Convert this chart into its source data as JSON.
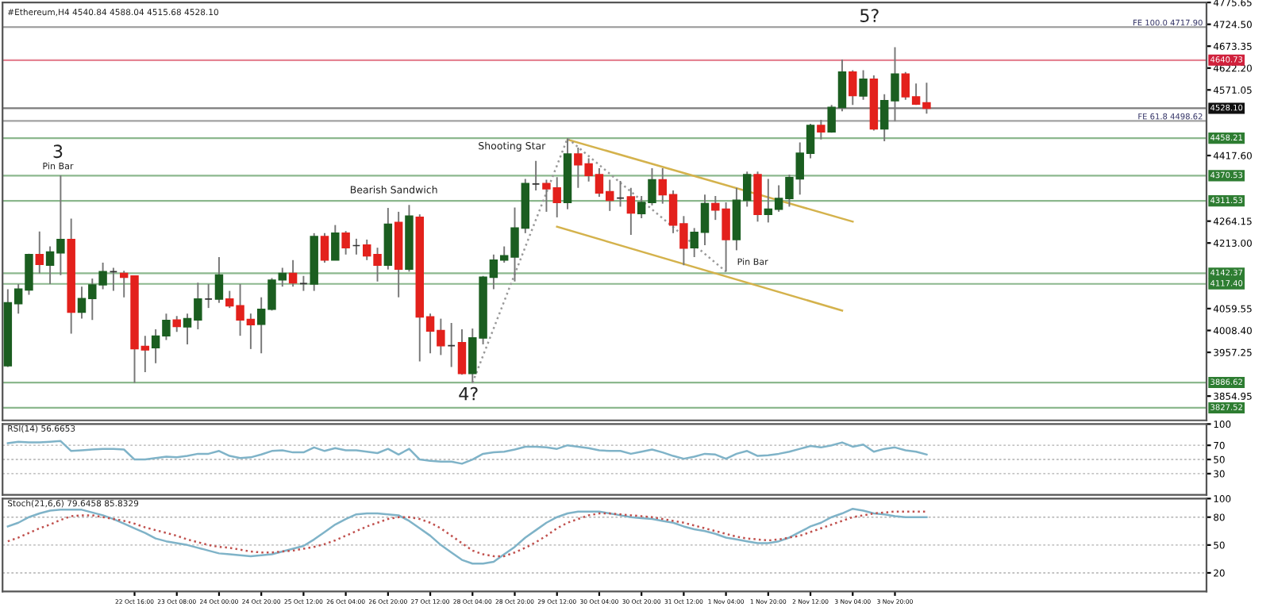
{
  "chart_data": [
    {
      "type": "candlestick",
      "title": "#Ethereum,H4 4540.84 4588.04 4515.68 4528.10",
      "categories": [
        null,
        null,
        null,
        null,
        null,
        null,
        null,
        null,
        null,
        null,
        null,
        null,
        null,
        null,
        null,
        null,
        null,
        null,
        null,
        null,
        null,
        null,
        null,
        null,
        null,
        null,
        null,
        null,
        null,
        null,
        null,
        null,
        null,
        null,
        null,
        null,
        null,
        null,
        null,
        null,
        null,
        null,
        null,
        null,
        null,
        null,
        null,
        null,
        null,
        null,
        null,
        null,
        null,
        null,
        null,
        null,
        null,
        null,
        null,
        null,
        null,
        null,
        null,
        null,
        null,
        null,
        null,
        null,
        null,
        null,
        null,
        null,
        null,
        null,
        null,
        null,
        null,
        null,
        null,
        null,
        null,
        null,
        null,
        null,
        null,
        null,
        null,
        null,
        null,
        null,
        null,
        null,
        null,
        null,
        null,
        null,
        null,
        null,
        null,
        null,
        null,
        null,
        null,
        null,
        null,
        null,
        null,
        null,
        null,
        null,
        null,
        null,
        null,
        null
      ],
      "ohlc": [
        [
          3926,
          4105,
          3923,
          4073
        ],
        [
          4071,
          4117,
          4048,
          4105
        ],
        [
          4103,
          4188,
          4092,
          4186
        ],
        [
          4186,
          4240,
          4142,
          4163
        ],
        [
          4161,
          4205,
          4117,
          4192
        ],
        [
          4190,
          4371,
          4138,
          4221
        ],
        [
          4221,
          4270,
          4001,
          4051
        ],
        [
          4051,
          4111,
          4036,
          4083
        ],
        [
          4083,
          4130,
          4033,
          4115
        ],
        [
          4115,
          4167,
          4105,
          4146
        ],
        [
          4146,
          4155,
          4101,
          4146
        ],
        [
          4142,
          4148,
          4086,
          4133
        ],
        [
          4136,
          4136,
          3886,
          3966
        ],
        [
          3971,
          3996,
          3911,
          3963
        ],
        [
          3968,
          4011,
          3932,
          3995
        ],
        [
          3996,
          4048,
          3986,
          4032
        ],
        [
          4033,
          4042,
          4005,
          4018
        ],
        [
          4017,
          4048,
          3976,
          4036
        ],
        [
          4033,
          4120,
          4011,
          4082
        ],
        [
          4082,
          4117,
          4061,
          4082
        ],
        [
          4082,
          4180,
          4073,
          4138
        ],
        [
          4082,
          4101,
          4061,
          4066
        ],
        [
          4066,
          4117,
          3996,
          4033
        ],
        [
          4034,
          4048,
          3965,
          4022
        ],
        [
          4023,
          4086,
          3955,
          4058
        ],
        [
          4058,
          4131,
          4055,
          4126
        ],
        [
          4127,
          4155,
          4111,
          4142
        ],
        [
          4142,
          4173,
          4111,
          4120
        ],
        [
          4118,
          4136,
          4101,
          4118
        ],
        [
          4117,
          4236,
          4101,
          4228
        ],
        [
          4228,
          4236,
          4167,
          4173
        ],
        [
          4173,
          4255,
          4173,
          4236
        ],
        [
          4236,
          4241,
          4186,
          4202
        ],
        [
          4207,
          4223,
          4186,
          4207
        ],
        [
          4208,
          4221,
          4173,
          4183
        ],
        [
          4186,
          4202,
          4123,
          4161
        ],
        [
          4161,
          4295,
          4151,
          4257
        ],
        [
          4261,
          4286,
          4086,
          4152
        ],
        [
          4152,
          4302,
          4146,
          4276
        ],
        [
          4273,
          4280,
          3936,
          4040
        ],
        [
          4040,
          4048,
          3955,
          4007
        ],
        [
          4008,
          4036,
          3951,
          3973
        ],
        [
          3973,
          4026,
          3923,
          3973
        ],
        [
          3980,
          4011,
          3905,
          3908
        ],
        [
          3908,
          4013,
          3886,
          3991
        ],
        [
          3991,
          4136,
          3976,
          4133
        ],
        [
          4133,
          4186,
          4105,
          4173
        ],
        [
          4173,
          4205,
          4167,
          4183
        ],
        [
          4180,
          4296,
          4123,
          4248
        ],
        [
          4248,
          4363,
          4236,
          4352
        ],
        [
          4351,
          4405,
          4336,
          4351
        ],
        [
          4352,
          4361,
          4286,
          4340
        ],
        [
          4342,
          4367,
          4273,
          4308
        ],
        [
          4308,
          4458,
          4292,
          4421
        ],
        [
          4421,
          4436,
          4342,
          4396
        ],
        [
          4398,
          4411,
          4357,
          4371
        ],
        [
          4373,
          4388,
          4321,
          4330
        ],
        [
          4333,
          4361,
          4288,
          4313
        ],
        [
          4318,
          4358,
          4298,
          4318
        ],
        [
          4321,
          4342,
          4232,
          4283
        ],
        [
          4282,
          4323,
          4271,
          4308
        ],
        [
          4308,
          4388,
          4301,
          4361
        ],
        [
          4361,
          4388,
          4305,
          4326
        ],
        [
          4326,
          4336,
          4236,
          4255
        ],
        [
          4258,
          4276,
          4161,
          4201
        ],
        [
          4202,
          4248,
          4180,
          4238
        ],
        [
          4238,
          4326,
          4208,
          4305
        ],
        [
          4305,
          4323,
          4267,
          4290
        ],
        [
          4292,
          4308,
          4146,
          4221
        ],
        [
          4221,
          4342,
          4196,
          4313
        ],
        [
          4313,
          4380,
          4298,
          4373
        ],
        [
          4373,
          4380,
          4263,
          4280
        ],
        [
          4280,
          4363,
          4261,
          4292
        ],
        [
          4292,
          4348,
          4286,
          4317
        ],
        [
          4317,
          4373,
          4298,
          4366
        ],
        [
          4363,
          4448,
          4326,
          4423
        ],
        [
          4423,
          4492,
          4411,
          4488
        ],
        [
          4488,
          4501,
          4455,
          4473
        ],
        [
          4473,
          4536,
          4471,
          4530
        ],
        [
          4530,
          4642,
          4521,
          4613
        ],
        [
          4613,
          4617,
          4536,
          4558
        ],
        [
          4557,
          4617,
          4548,
          4596
        ],
        [
          4596,
          4605,
          4476,
          4480
        ],
        [
          4480,
          4561,
          4451,
          4546
        ],
        [
          4546,
          4671,
          4498,
          4608
        ],
        [
          4608,
          4613,
          4548,
          4555
        ],
        [
          4555,
          4586,
          4536,
          4538
        ],
        [
          4540.84,
          4588.04,
          4515.68,
          4528.1
        ],
        null,
        null,
        null,
        null,
        null,
        null,
        null,
        null,
        null,
        null,
        null,
        null,
        null,
        null,
        null,
        null,
        null,
        null,
        null,
        null,
        null,
        null,
        null,
        null,
        null,
        null
      ],
      "colors": [
        "#1b5e20",
        "#1b5e20",
        "#1b5e20",
        "#e3211c",
        "#1b5e20",
        "#1b5e20",
        "#e3211c",
        "#1b5e20",
        "#1b5e20",
        "#1b5e20",
        "#333333",
        "#e3211c",
        "#e3211c",
        "#e3211c",
        "#1b5e20",
        "#1b5e20",
        "#e3211c",
        "#1b5e20",
        "#1b5e20",
        "#333333",
        "#1b5e20",
        "#e3211c",
        "#e3211c",
        "#e3211c",
        "#1b5e20",
        "#1b5e20",
        "#1b5e20",
        "#e3211c",
        "#333333",
        "#1b5e20",
        "#e3211c",
        "#1b5e20",
        "#e3211c",
        "#333333",
        "#e3211c",
        "#e3211c",
        "#1b5e20",
        "#e3211c",
        "#1b5e20",
        "#e3211c",
        "#e3211c",
        "#e3211c",
        "#333333",
        "#e3211c",
        "#1b5e20",
        "#1b5e20",
        "#1b5e20",
        "#1b5e20",
        "#1b5e20",
        "#1b5e20",
        "#333333",
        "#e3211c",
        "#e3211c",
        "#1b5e20",
        "#e3211c",
        "#e3211c",
        "#e3211c",
        "#e3211c",
        "#333333",
        "#e3211c",
        "#1b5e20",
        "#1b5e20",
        "#e3211c",
        "#e3211c",
        "#e3211c",
        "#1b5e20",
        "#1b5e20",
        "#e3211c",
        "#e3211c",
        "#1b5e20",
        "#1b5e20",
        "#e3211c",
        "#1b5e20",
        "#1b5e20",
        "#1b5e20",
        "#1b5e20",
        "#1b5e20",
        "#e3211c",
        "#1b5e20",
        "#1b5e20",
        "#e3211c",
        "#1b5e20",
        "#e3211c",
        "#1b5e20",
        "#1b5e20",
        "#e3211c",
        "#e3211c",
        "#e3211c",
        null,
        null,
        null,
        null,
        null,
        null,
        null,
        null,
        null,
        null,
        null,
        null,
        null,
        null,
        null,
        null,
        null,
        null,
        null,
        null,
        null,
        null,
        null,
        null,
        null,
        null
      ],
      "series": [
        {
          "type": "line",
          "color": "#d4b24c",
          "values": [
            null,
            null,
            null,
            null,
            null,
            null,
            null,
            null,
            null,
            null,
            null,
            null,
            null,
            null,
            null,
            null,
            null,
            null,
            null,
            null,
            null,
            null,
            null,
            null,
            null,
            null,
            null,
            null,
            null,
            null,
            null,
            null,
            null,
            null,
            null,
            null,
            null,
            null,
            null,
            null,
            null,
            null,
            null,
            null,
            null,
            null,
            null,
            null,
            null,
            null,
            null,
            null,
            null,
            4455,
            null,
            null,
            null,
            null,
            null,
            null,
            null,
            null,
            null,
            null,
            null,
            null,
            null,
            null,
            null,
            null,
            null,
            null,
            null,
            null,
            null,
            null,
            null,
            null,
            null,
            null,
            4263,
            null,
            null,
            null,
            null,
            null,
            null,
            null,
            null,
            null,
            null,
            null,
            null,
            null,
            null,
            null,
            null,
            null,
            null,
            null,
            null,
            null,
            null,
            null,
            null,
            null,
            null,
            null,
            null,
            null,
            null,
            null,
            null,
            null
          ]
        },
        {
          "type": "line",
          "color": "#d4b24c",
          "values": [
            null,
            null,
            null,
            null,
            null,
            null,
            null,
            null,
            null,
            null,
            null,
            null,
            null,
            null,
            null,
            null,
            null,
            null,
            null,
            null,
            null,
            null,
            null,
            null,
            null,
            null,
            null,
            null,
            null,
            null,
            null,
            null,
            null,
            null,
            null,
            null,
            null,
            null,
            null,
            null,
            null,
            null,
            null,
            null,
            null,
            null,
            null,
            null,
            null,
            null,
            null,
            null,
            4251,
            null,
            null,
            null,
            null,
            null,
            null,
            null,
            null,
            null,
            null,
            null,
            null,
            null,
            null,
            null,
            null,
            null,
            null,
            null,
            null,
            null,
            null,
            null,
            null,
            null,
            null,
            4055,
            null,
            null,
            null,
            null,
            null,
            null,
            null,
            null,
            null,
            null,
            null,
            null,
            null,
            null,
            null,
            null,
            null,
            null,
            null,
            null,
            null,
            null,
            null,
            null,
            null,
            null,
            null,
            null,
            null,
            null,
            null,
            null,
            null,
            null
          ]
        },
        {
          "type": "line",
          "color": "#9a9a9a",
          "line_style": "dotted",
          "values": [
            null,
            null,
            null,
            null,
            null,
            null,
            null,
            null,
            null,
            null,
            null,
            null,
            null,
            null,
            null,
            null,
            null,
            null,
            null,
            null,
            null,
            null,
            null,
            null,
            null,
            null,
            null,
            null,
            null,
            null,
            null,
            null,
            null,
            null,
            null,
            null,
            null,
            null,
            null,
            null,
            null,
            null,
            null,
            null,
            3886,
            null,
            null,
            null,
            null,
            null,
            null,
            null,
            null,
            4458,
            null,
            null,
            null,
            null,
            null,
            null,
            null,
            null,
            null,
            null,
            null,
            null,
            null,
            null,
            4146,
            null,
            null,
            null,
            null,
            null,
            null,
            null,
            null,
            null,
            null,
            null,
            null,
            null,
            null,
            null,
            null,
            null,
            null,
            null,
            null,
            null,
            null,
            null,
            null,
            null,
            null,
            null,
            null,
            null,
            null,
            null,
            null,
            null,
            null,
            null,
            null,
            null,
            null,
            null,
            null,
            null,
            null,
            null,
            null,
            null
          ]
        }
      ],
      "ylim": [
        3798.15,
        4775.65
      ],
      "yticks": [
        {
          "value": 3854.95,
          "label": "3854.95"
        },
        {
          "value": 3957.25,
          "label": "3957.25"
        },
        {
          "value": 4008.4,
          "label": "4008.40"
        },
        {
          "value": 4059.55,
          "label": "4059.55"
        },
        {
          "value": 4213,
          "label": "4213.00"
        },
        {
          "value": 4264.15,
          "label": "4264.15"
        },
        {
          "value": 4417.6,
          "label": "4417.60"
        },
        {
          "value": 4571.05,
          "label": "4571.05"
        },
        {
          "value": 4622.2,
          "label": "4622.20"
        },
        {
          "value": 4673.35,
          "label": "4673.35"
        },
        {
          "value": 4724.5,
          "label": "4724.50"
        },
        {
          "value": 4775.65,
          "label": "4775.65"
        }
      ],
      "tick_labels": "y",
      "ref_lines": [
        {
          "axis": "y",
          "value": 4717.9,
          "color": "#555555"
        },
        {
          "axis": "y",
          "value": 4640.73,
          "label": "4640.73",
          "color": "#d0213c"
        },
        {
          "axis": "y",
          "value": 4528.1,
          "label": "4528.10",
          "color": "#111111"
        },
        {
          "axis": "y",
          "value": 4498.62,
          "color": "#555555"
        },
        {
          "axis": "y",
          "value": 4458.21,
          "label": "4458.21",
          "color": "#2e7d32"
        },
        {
          "axis": "y",
          "value": 4370.53,
          "label": "4370.53",
          "color": "#2e7d32"
        },
        {
          "axis": "y",
          "value": 4311.53,
          "label": "4311.53",
          "color": "#2e7d32"
        },
        {
          "axis": "y",
          "value": 4142.37,
          "label": "4142.37",
          "color": "#2e7d32"
        },
        {
          "axis": "y",
          "value": 4117.4,
          "label": "4117.40",
          "color": "#2e7d32"
        },
        {
          "axis": "y",
          "value": 3886.62,
          "label": "3886.62",
          "color": "#2e7d32"
        },
        {
          "axis": "y",
          "value": 3827.52,
          "label": "3827.52",
          "color": "#2e7d32"
        }
      ],
      "annotations": [
        "3",
        "Pin Bar",
        "Bearish Sandwich",
        "Shooting Star",
        "4?",
        "5?",
        "Pin Bar",
        {
          "text": "FE 100.0 4717.90",
          "y": 4717.9
        },
        {
          "text": "FE 61.8 4498.62",
          "y": 4498.62
        }
      ]
    },
    {
      "type": "line",
      "title": "RSI(14) 56.6653",
      "categories": [
        null,
        null,
        null,
        null,
        null,
        null,
        null,
        null,
        null,
        null,
        null,
        null,
        null,
        null,
        null,
        null,
        null,
        null,
        null,
        null,
        null,
        null,
        null,
        null,
        null,
        null,
        null,
        null,
        null,
        null,
        null,
        null,
        null,
        null,
        null,
        null,
        null,
        null,
        null,
        null,
        null,
        null,
        null,
        null,
        null,
        null,
        null,
        null,
        null,
        null,
        null,
        null,
        null,
        null,
        null,
        null,
        null,
        null,
        null,
        null,
        null,
        null,
        null,
        null,
        null,
        null,
        null,
        null,
        null,
        null,
        null,
        null,
        null,
        null,
        null,
        null,
        null,
        null,
        null,
        null,
        null,
        null,
        null,
        null,
        null,
        null,
        null,
        null,
        null,
        null,
        null,
        null,
        null,
        null,
        null,
        null,
        null,
        null,
        null,
        null,
        null,
        null,
        null,
        null,
        null,
        null,
        null,
        null,
        null,
        null,
        null,
        null,
        null,
        null
      ],
      "series": [
        {
          "color": "#7fb3c8",
          "values": [
            73,
            75,
            74,
            74,
            75,
            76,
            62,
            63,
            64,
            65,
            65,
            64,
            50,
            50,
            52,
            54,
            53,
            55,
            58,
            58,
            62,
            55,
            52,
            53,
            57,
            62,
            63,
            60,
            60,
            67,
            62,
            66,
            63,
            63,
            61,
            59,
            65,
            57,
            65,
            50,
            48,
            47,
            47,
            44,
            50,
            58,
            60,
            61,
            64,
            68,
            68,
            67,
            65,
            70,
            68,
            66,
            63,
            62,
            62,
            58,
            61,
            64,
            60,
            55,
            51,
            54,
            58,
            57,
            51,
            58,
            62,
            55,
            56,
            58,
            61,
            65,
            69,
            67,
            70,
            74,
            68,
            71,
            61,
            65,
            67,
            63,
            61,
            57,
            null,
            null,
            null,
            null,
            null,
            null,
            null,
            null,
            null,
            null,
            null,
            null,
            null,
            null,
            null,
            null,
            null,
            null,
            null,
            null,
            null,
            null,
            null,
            null,
            null,
            null
          ]
        }
      ],
      "ylim": [
        0,
        100
      ],
      "yticks": [
        30,
        50,
        70,
        100
      ],
      "grid": "y",
      "tick_labels": "y"
    },
    {
      "type": "line",
      "title": "Stoch(21,6,6) 79.6458 85.8329",
      "categories": [
        null,
        null,
        null,
        null,
        null,
        null,
        null,
        null,
        null,
        null,
        null,
        null,
        "22 Oct 16:00",
        null,
        null,
        null,
        "23 Oct 08:00",
        null,
        null,
        null,
        "24 Oct 00:00",
        null,
        null,
        null,
        "24 Oct 20:00",
        null,
        null,
        null,
        "25 Oct 12:00",
        null,
        null,
        null,
        "26 Oct 04:00",
        null,
        null,
        null,
        "26 Oct 20:00",
        null,
        null,
        null,
        "27 Oct 12:00",
        null,
        null,
        null,
        "28 Oct 04:00",
        null,
        null,
        null,
        "28 Oct 20:00",
        null,
        null,
        null,
        "29 Oct 12:00",
        null,
        null,
        null,
        "30 Oct 04:00",
        null,
        null,
        null,
        "30 Oct 20:00",
        null,
        null,
        null,
        "31 Oct 12:00",
        null,
        null,
        null,
        "1 Nov 04:00",
        null,
        null,
        null,
        "1 Nov 20:00",
        null,
        null,
        null,
        "2 Nov 12:00",
        null,
        null,
        null,
        "3 Nov 04:00",
        null,
        null,
        null,
        "3 Nov 20:00",
        null,
        null,
        null,
        null,
        null,
        null,
        null,
        null,
        null,
        null,
        null,
        null,
        null,
        null,
        null,
        null,
        null,
        null,
        null,
        null,
        null,
        null,
        null,
        null,
        null,
        null,
        null,
        null,
        null
      ],
      "series": [
        {
          "color": "#7fb3c8",
          "values": [
            70,
            74,
            80,
            84,
            87,
            88,
            88,
            88,
            85,
            82,
            78,
            73,
            68,
            63,
            57,
            54,
            52,
            50,
            47,
            44,
            41,
            40,
            39,
            38,
            39,
            40,
            43,
            46,
            49,
            56,
            64,
            72,
            78,
            83,
            84,
            84,
            83,
            82,
            76,
            68,
            60,
            50,
            42,
            34,
            30,
            30,
            32,
            40,
            48,
            58,
            66,
            74,
            80,
            84,
            86,
            86,
            86,
            84,
            82,
            80,
            79,
            78,
            76,
            74,
            70,
            67,
            65,
            62,
            58,
            56,
            54,
            52,
            52,
            54,
            58,
            64,
            70,
            74,
            80,
            84,
            89,
            87,
            84,
            83,
            81,
            80,
            80,
            80,
            null,
            null,
            null,
            null,
            null,
            null,
            null,
            null,
            null,
            null,
            null,
            null,
            null,
            null,
            null,
            null,
            null,
            null,
            null,
            null,
            null,
            null,
            null,
            null,
            null,
            null
          ]
        },
        {
          "color": "#c0504d",
          "line_style": "dotted",
          "values": [
            54,
            58,
            63,
            68,
            72,
            77,
            81,
            82,
            82,
            80,
            78,
            76,
            73,
            69,
            66,
            63,
            60,
            56,
            53,
            50,
            48,
            47,
            45,
            43,
            42,
            42,
            43,
            44,
            46,
            48,
            51,
            55,
            60,
            65,
            70,
            74,
            78,
            80,
            80,
            78,
            74,
            68,
            60,
            52,
            44,
            40,
            38,
            38,
            42,
            47,
            53,
            60,
            68,
            74,
            78,
            82,
            84,
            84,
            83,
            82,
            81,
            80,
            78,
            76,
            74,
            71,
            68,
            65,
            62,
            59,
            57,
            56,
            55,
            56,
            58,
            60,
            64,
            68,
            72,
            76,
            80,
            82,
            84,
            85,
            86,
            86,
            86,
            86,
            null,
            null,
            null,
            null,
            null,
            null,
            null,
            null,
            null,
            null,
            null,
            null,
            null,
            null,
            null,
            null,
            null,
            null,
            null,
            null,
            null,
            null,
            null,
            null,
            null,
            null
          ]
        }
      ],
      "ylim": [
        0,
        100
      ],
      "yticks": [
        20,
        50,
        80,
        100
      ],
      "grid": "y"
    }
  ]
}
